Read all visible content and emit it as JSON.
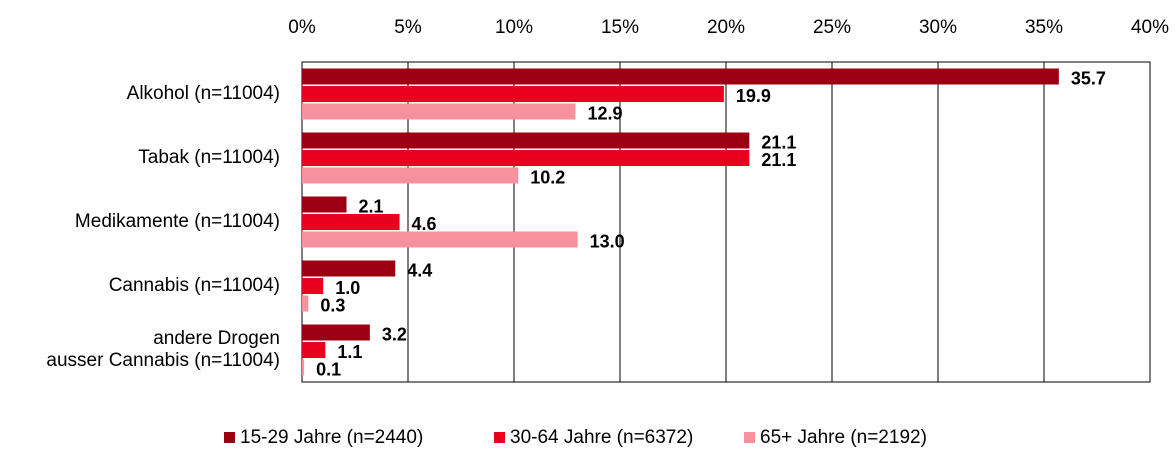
{
  "chart_data": {
    "type": "hbar",
    "categories": [
      "Alkohol (n=11004)",
      "Tabak (n=11004)",
      "Medikamente (n=11004)",
      "Cannabis (n=11004)",
      "andere Drogen\nausser Cannabis (n=11004)"
    ],
    "series": [
      {
        "name": "15-29 Jahre (n=2440)",
        "color": "#9b0012",
        "values": [
          35.7,
          21.1,
          2.1,
          4.4,
          3.2
        ],
        "value_labels": [
          "35.7",
          "21.1",
          "2.1",
          "4.4",
          "3.2"
        ]
      },
      {
        "name": "30-64 Jahre (n=6372)",
        "color": "#e8001c",
        "values": [
          19.9,
          21.1,
          4.6,
          1.0,
          1.1
        ],
        "value_labels": [
          "19.9",
          "21.1",
          "4.6",
          "1.0",
          "1.1"
        ]
      },
      {
        "name": "65+ Jahre (n=2192)",
        "color": "#f7919e",
        "values": [
          12.9,
          10.2,
          13.0,
          0.3,
          0.1
        ],
        "value_labels": [
          "12.9",
          "10.2",
          "13.0",
          "0.3",
          "0.1"
        ]
      }
    ],
    "xlim": [
      0,
      40
    ],
    "xticks": [
      {
        "value": 0,
        "label": "0%"
      },
      {
        "value": 5,
        "label": "5%"
      },
      {
        "value": 10,
        "label": "10%"
      },
      {
        "value": 15,
        "label": "15%"
      },
      {
        "value": 20,
        "label": "20%"
      },
      {
        "value": 25,
        "label": "25%"
      },
      {
        "value": 30,
        "label": "30%"
      },
      {
        "value": 35,
        "label": "35%"
      },
      {
        "value": 40,
        "label": "40%"
      }
    ],
    "grid": true,
    "legend": "bottom"
  }
}
